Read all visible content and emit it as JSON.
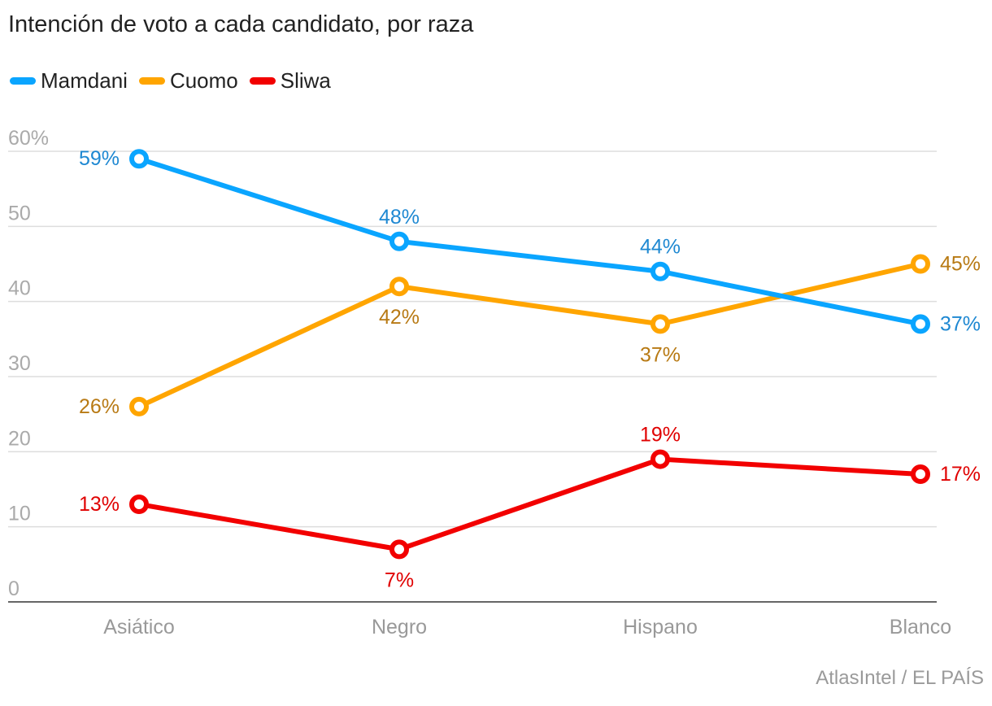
{
  "chart_data": {
    "type": "line",
    "title": "Intención de voto a cada candidato, por raza",
    "categories": [
      "Asiático",
      "Negro",
      "Hispano",
      "Blanco"
    ],
    "y_ticks": [
      "0",
      "10",
      "20",
      "30",
      "40",
      "50",
      "60%"
    ],
    "ylim": [
      0,
      60
    ],
    "grid": true,
    "legend_position": "top-left",
    "series": [
      {
        "name": "Mamdani",
        "color": "#0aa5ff",
        "label_color": "#1e88d2",
        "values": [
          59,
          48,
          44,
          37
        ],
        "labels": [
          "59%",
          "48%",
          "44%",
          "37%"
        ]
      },
      {
        "name": "Cuomo",
        "color": "#ffa500",
        "label_color": "#b87a14",
        "values": [
          26,
          42,
          37,
          45
        ],
        "labels": [
          "26%",
          "42%",
          "37%",
          "45%"
        ]
      },
      {
        "name": "Sliwa",
        "color": "#f20000",
        "label_color": "#e00000",
        "values": [
          13,
          7,
          19,
          17
        ],
        "labels": [
          "13%",
          "7%",
          "19%",
          "17%"
        ]
      }
    ]
  },
  "source": "AtlasIntel / EL PAÍS"
}
